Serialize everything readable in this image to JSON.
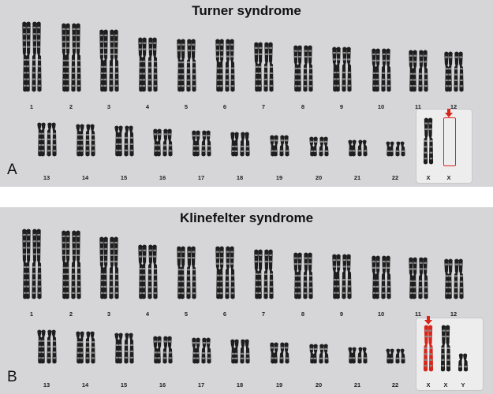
{
  "panels": [
    {
      "title": "Turner syndrome",
      "letter": "A",
      "autosome_labels": [
        "1",
        "2",
        "3",
        "4",
        "5",
        "6",
        "7",
        "8",
        "9",
        "10",
        "11",
        "12",
        "13",
        "14",
        "15",
        "16",
        "17",
        "18",
        "19",
        "20",
        "21",
        "22"
      ],
      "sex_chromosomes": [
        {
          "label": "X",
          "status": "present"
        },
        {
          "label": "X",
          "status": "missing",
          "marker": "red-arrow-icon"
        }
      ]
    },
    {
      "title": "Klinefelter syndrome",
      "letter": "B",
      "autosome_labels": [
        "1",
        "2",
        "3",
        "4",
        "5",
        "6",
        "7",
        "8",
        "9",
        "10",
        "11",
        "12",
        "13",
        "14",
        "15",
        "16",
        "17",
        "18",
        "19",
        "20",
        "21",
        "22"
      ],
      "sex_chromosomes": [
        {
          "label": "X",
          "status": "extra",
          "marker": "red-arrow-icon"
        },
        {
          "label": "X",
          "status": "present"
        },
        {
          "label": "Y",
          "status": "present"
        }
      ]
    }
  ],
  "colors": {
    "panel_background": "#d6d6d9",
    "sex_box_background": "#ededee",
    "chromosome_dark": "#1e1e1e",
    "chromosome_light": "#8a8a8a",
    "highlight_red": "#d9261c"
  }
}
